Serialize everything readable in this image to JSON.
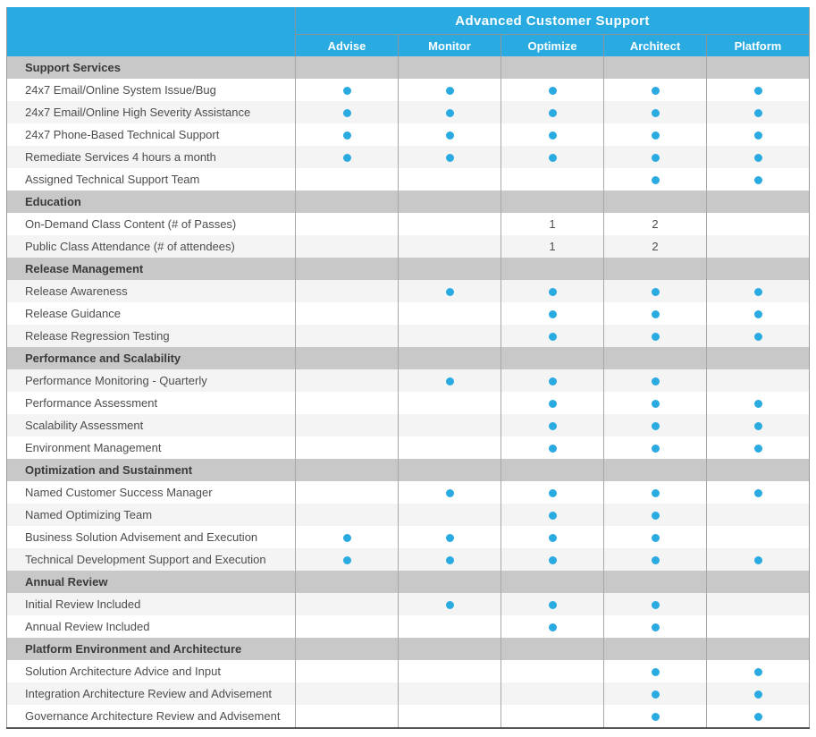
{
  "header": {
    "group_title": "Advanced Customer Support",
    "columns": [
      "Advise",
      "Monitor",
      "Optimize",
      "Architect",
      "Platform"
    ]
  },
  "colors": {
    "header_blue": "#29abe2",
    "dot_blue": "#29abe2",
    "section_gray": "#c8c8c8",
    "alt_row_gray": "#f4f4f4",
    "text_gray": "#4d4d4d"
  },
  "icons": {
    "included": "included-dot-icon"
  },
  "sections": [
    {
      "title": "Support Services",
      "rows": [
        {
          "label": "24x7 Email/Online System Issue/Bug",
          "cells": [
            "dot",
            "dot",
            "dot",
            "dot",
            "dot"
          ]
        },
        {
          "label": "24x7 Email/Online High Severity Assistance",
          "cells": [
            "dot",
            "dot",
            "dot",
            "dot",
            "dot"
          ]
        },
        {
          "label": "24x7 Phone-Based Technical Support",
          "cells": [
            "dot",
            "dot",
            "dot",
            "dot",
            "dot"
          ]
        },
        {
          "label": "Remediate Services 4 hours a month",
          "cells": [
            "dot",
            "dot",
            "dot",
            "dot",
            "dot"
          ]
        },
        {
          "label": "Assigned Technical Support Team",
          "cells": [
            "",
            "",
            "",
            "dot",
            "dot"
          ]
        }
      ]
    },
    {
      "title": "Education",
      "rows": [
        {
          "label": "On-Demand Class Content (# of Passes)",
          "cells": [
            "",
            "",
            "1",
            "2",
            ""
          ]
        },
        {
          "label": "Public Class Attendance (# of attendees)",
          "cells": [
            "",
            "",
            "1",
            "2",
            ""
          ]
        }
      ]
    },
    {
      "title": "Release Management",
      "rows": [
        {
          "label": "Release Awareness",
          "cells": [
            "",
            "dot",
            "dot",
            "dot",
            "dot"
          ]
        },
        {
          "label": "Release Guidance",
          "cells": [
            "",
            "",
            "dot",
            "dot",
            "dot"
          ]
        },
        {
          "label": "Release Regression Testing",
          "cells": [
            "",
            "",
            "dot",
            "dot",
            "dot"
          ]
        }
      ]
    },
    {
      "title": "Performance and Scalability",
      "rows": [
        {
          "label": "Performance Monitoring - Quarterly",
          "cells": [
            "",
            "dot",
            "dot",
            "dot",
            ""
          ]
        },
        {
          "label": "Performance Assessment",
          "cells": [
            "",
            "",
            "dot",
            "dot",
            "dot"
          ]
        },
        {
          "label": "Scalability Assessment",
          "cells": [
            "",
            "",
            "dot",
            "dot",
            "dot"
          ]
        },
        {
          "label": "Environment Management",
          "cells": [
            "",
            "",
            "dot",
            "dot",
            "dot"
          ]
        }
      ]
    },
    {
      "title": "Optimization and Sustainment",
      "rows": [
        {
          "label": "Named Customer Success Manager",
          "cells": [
            "",
            "dot",
            "dot",
            "dot",
            "dot"
          ]
        },
        {
          "label": "Named Optimizing Team",
          "cells": [
            "",
            "",
            "dot",
            "dot",
            ""
          ]
        },
        {
          "label": "Business Solution Advisement and Execution",
          "cells": [
            "dot",
            "dot",
            "dot",
            "dot",
            ""
          ]
        },
        {
          "label": "Technical Development Support and Execution",
          "cells": [
            "dot",
            "dot",
            "dot",
            "dot",
            "dot"
          ]
        }
      ]
    },
    {
      "title": "Annual Review",
      "rows": [
        {
          "label": "Initial Review Included",
          "cells": [
            "",
            "dot",
            "dot",
            "dot",
            ""
          ]
        },
        {
          "label": "Annual Review Included",
          "cells": [
            "",
            "",
            "dot",
            "dot",
            ""
          ]
        }
      ]
    },
    {
      "title": "Platform Environment and Architecture",
      "rows": [
        {
          "label": "Solution Architecture Advice and Input",
          "cells": [
            "",
            "",
            "",
            "dot",
            "dot"
          ]
        },
        {
          "label": "Integration Architecture Review and Advisement",
          "cells": [
            "",
            "",
            "",
            "dot",
            "dot"
          ]
        },
        {
          "label": "Governance Architecture Review and Advisement",
          "cells": [
            "",
            "",
            "",
            "dot",
            "dot"
          ]
        }
      ]
    }
  ]
}
